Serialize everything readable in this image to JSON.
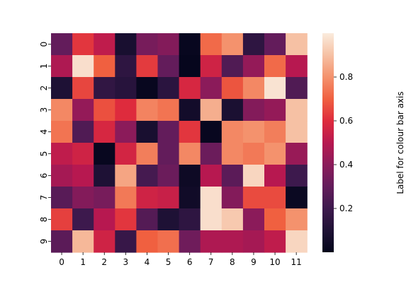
{
  "chart_data": {
    "type": "heatmap",
    "title": "",
    "xlabel": "",
    "ylabel": "",
    "x_categories": [
      "0",
      "1",
      "2",
      "3",
      "4",
      "5",
      "6",
      "7",
      "8",
      "9",
      "10",
      "11"
    ],
    "y_categories": [
      "0",
      "1",
      "2",
      "3",
      "4",
      "5",
      "6",
      "7",
      "8",
      "9"
    ],
    "colormap": "rocket",
    "colorbar": {
      "label": "Label for colour bar axis",
      "range": [
        0.0,
        1.0
      ],
      "ticks": [
        0.2,
        0.4,
        0.6,
        0.8
      ],
      "tick_labels": [
        "0.2",
        "0.4",
        "0.6",
        "0.8"
      ]
    },
    "values": [
      [
        0.3,
        0.62,
        0.52,
        0.08,
        0.35,
        0.38,
        0.02,
        0.72,
        0.8,
        0.15,
        0.3,
        0.9
      ],
      [
        0.48,
        0.97,
        0.7,
        0.15,
        0.63,
        0.3,
        0.01,
        0.56,
        0.25,
        0.42,
        0.72,
        0.5
      ],
      [
        0.1,
        0.65,
        0.16,
        0.13,
        0.02,
        0.14,
        0.58,
        0.4,
        0.68,
        0.78,
        0.98,
        0.25
      ],
      [
        0.78,
        0.42,
        0.67,
        0.6,
        0.77,
        0.74,
        0.06,
        0.86,
        0.09,
        0.38,
        0.42,
        0.9
      ],
      [
        0.74,
        0.25,
        0.58,
        0.4,
        0.08,
        0.3,
        0.62,
        0.02,
        0.78,
        0.8,
        0.76,
        0.9
      ],
      [
        0.52,
        0.56,
        0.02,
        0.57,
        0.76,
        0.3,
        0.78,
        0.32,
        0.78,
        0.75,
        0.8,
        0.43
      ],
      [
        0.46,
        0.5,
        0.1,
        0.84,
        0.22,
        0.32,
        0.04,
        0.5,
        0.28,
        0.95,
        0.5,
        0.2
      ],
      [
        0.27,
        0.38,
        0.35,
        0.75,
        0.56,
        0.54,
        0.05,
        0.97,
        0.38,
        0.66,
        0.66,
        0.03
      ],
      [
        0.64,
        0.2,
        0.5,
        0.62,
        0.26,
        0.1,
        0.15,
        0.97,
        0.92,
        0.4,
        0.7,
        0.8
      ],
      [
        0.28,
        0.88,
        0.56,
        0.18,
        0.7,
        0.73,
        0.33,
        0.48,
        0.48,
        0.46,
        0.52,
        0.95
      ]
    ]
  }
}
